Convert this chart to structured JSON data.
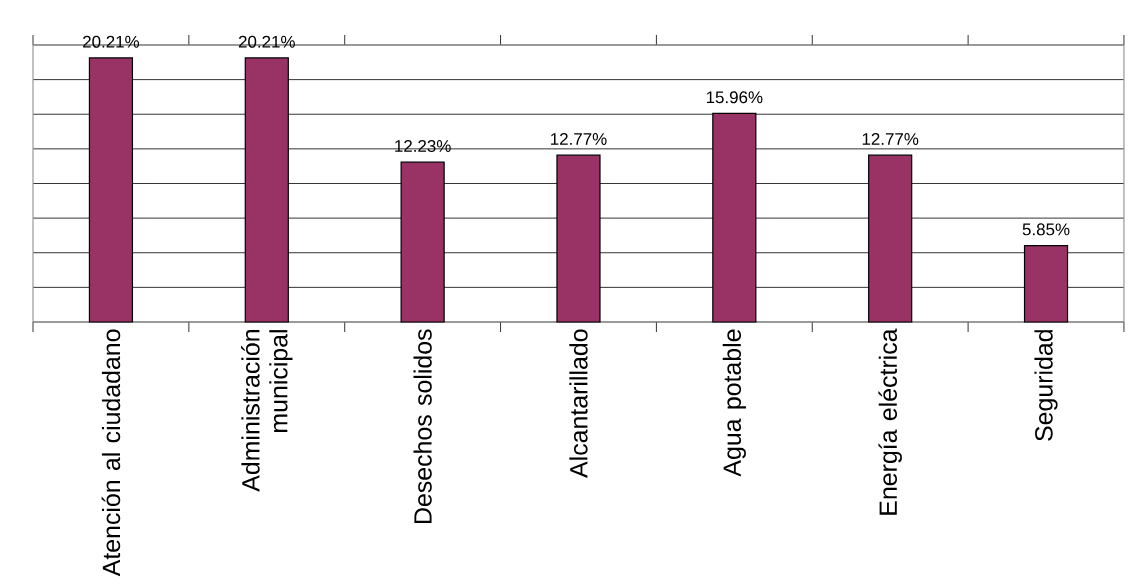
{
  "chart_data": {
    "type": "bar",
    "categories": [
      "Atención al ciudadano",
      "Administración municipal",
      "Desechos solidos",
      "Alcantarillado",
      "Agua potable",
      "Energía eléctrica",
      "Seguridad"
    ],
    "values": [
      20.21,
      20.21,
      12.23,
      12.77,
      15.96,
      12.77,
      5.85
    ],
    "value_labels": [
      "20.21%",
      "20.21%",
      "12.23%",
      "12.77%",
      "15.96%",
      "12.77%",
      "5.85%"
    ],
    "color": "#993366",
    "ylim": [
      0,
      21.2
    ],
    "yticks": [
      {
        "value": 0,
        "label": null
      },
      {
        "value": 2.65,
        "label": null
      },
      {
        "value": 5.3,
        "label": null
      },
      {
        "value": 7.95,
        "label": null
      },
      {
        "value": 10.6,
        "label": null
      },
      {
        "value": 13.25,
        "label": null
      },
      {
        "value": 15.9,
        "label": null
      },
      {
        "value": 18.55,
        "label": null
      },
      {
        "value": 21.2,
        "label": null
      }
    ],
    "grid": "y"
  }
}
